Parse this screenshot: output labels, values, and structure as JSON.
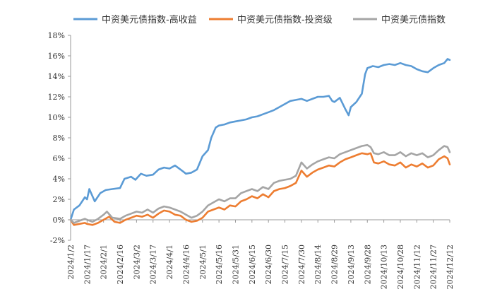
{
  "chart_data": {
    "type": "line",
    "title": "",
    "xlabel": "",
    "ylabel": "",
    "legend_position": "top",
    "grid": false,
    "ylim": [
      -2,
      18
    ],
    "yticks": [
      -2,
      0,
      2,
      4,
      6,
      8,
      10,
      12,
      14,
      16,
      18
    ],
    "ytick_labels": [
      "-2%",
      "0%",
      "2%",
      "4%",
      "6%",
      "8%",
      "10%",
      "12%",
      "14%",
      "16%",
      "18%"
    ],
    "x_tick_labels": [
      "2024/1/2",
      "2024/1/17",
      "2024/2/1",
      "2024/2/16",
      "2024/3/2",
      "2024/3/17",
      "2024/4/1",
      "2024/4/16",
      "2024/5/1",
      "2024/5/16",
      "2024/5/31",
      "2024/6/15",
      "2024/6/30",
      "2024/7/15",
      "2024/7/30",
      "2024/8/14",
      "2024/8/29",
      "2024/9/13",
      "2024/9/28",
      "2024/10/13",
      "2024/10/28",
      "2024/11/12",
      "2024/11/27",
      "2024/12/12"
    ],
    "series": [
      {
        "name": "中资美元债指数-高收益",
        "color": "#5B9BD5",
        "points": [
          [
            "2024/1/2",
            0.0
          ],
          [
            "2024/1/5",
            1.0
          ],
          [
            "2024/1/10",
            1.4
          ],
          [
            "2024/1/15",
            2.2
          ],
          [
            "2024/1/17",
            2.0
          ],
          [
            "2024/1/19",
            3.0
          ],
          [
            "2024/1/24",
            1.8
          ],
          [
            "2024/1/29",
            2.6
          ],
          [
            "2024/2/3",
            2.9
          ],
          [
            "2024/2/9",
            3.0
          ],
          [
            "2024/2/16",
            3.1
          ],
          [
            "2024/2/20",
            4.0
          ],
          [
            "2024/2/26",
            4.2
          ],
          [
            "2024/3/1",
            3.9
          ],
          [
            "2024/3/6",
            4.5
          ],
          [
            "2024/3/11",
            4.3
          ],
          [
            "2024/3/17",
            4.4
          ],
          [
            "2024/3/22",
            4.9
          ],
          [
            "2024/3/27",
            5.1
          ],
          [
            "2024/4/1",
            5.0
          ],
          [
            "2024/4/6",
            5.3
          ],
          [
            "2024/4/11",
            4.9
          ],
          [
            "2024/4/16",
            4.5
          ],
          [
            "2024/4/21",
            4.6
          ],
          [
            "2024/4/26",
            4.9
          ],
          [
            "2024/5/1",
            6.2
          ],
          [
            "2024/5/6",
            6.8
          ],
          [
            "2024/5/9",
            8.0
          ],
          [
            "2024/5/13",
            9.0
          ],
          [
            "2024/5/16",
            9.2
          ],
          [
            "2024/5/21",
            9.3
          ],
          [
            "2024/5/26",
            9.5
          ],
          [
            "2024/5/31",
            9.6
          ],
          [
            "2024/6/5",
            9.7
          ],
          [
            "2024/6/10",
            9.8
          ],
          [
            "2024/6/15",
            10.0
          ],
          [
            "2024/6/20",
            10.1
          ],
          [
            "2024/6/25",
            10.3
          ],
          [
            "2024/6/30",
            10.5
          ],
          [
            "2024/7/5",
            10.7
          ],
          [
            "2024/7/10",
            11.0
          ],
          [
            "2024/7/15",
            11.3
          ],
          [
            "2024/7/20",
            11.6
          ],
          [
            "2024/7/25",
            11.7
          ],
          [
            "2024/7/30",
            11.8
          ],
          [
            "2024/8/4",
            11.6
          ],
          [
            "2024/8/9",
            11.8
          ],
          [
            "2024/8/14",
            12.0
          ],
          [
            "2024/8/19",
            12.0
          ],
          [
            "2024/8/24",
            12.1
          ],
          [
            "2024/8/27",
            11.6
          ],
          [
            "2024/8/29",
            11.5
          ],
          [
            "2024/9/3",
            11.9
          ],
          [
            "2024/9/8",
            10.8
          ],
          [
            "2024/9/11",
            10.2
          ],
          [
            "2024/9/13",
            11.0
          ],
          [
            "2024/9/18",
            11.5
          ],
          [
            "2024/9/23",
            12.3
          ],
          [
            "2024/9/26",
            14.2
          ],
          [
            "2024/9/28",
            14.8
          ],
          [
            "2024/10/3",
            15.0
          ],
          [
            "2024/10/8",
            14.9
          ],
          [
            "2024/10/13",
            15.1
          ],
          [
            "2024/10/18",
            15.2
          ],
          [
            "2024/10/23",
            15.1
          ],
          [
            "2024/10/28",
            15.3
          ],
          [
            "2024/11/2",
            15.1
          ],
          [
            "2024/11/7",
            15.0
          ],
          [
            "2024/11/12",
            14.7
          ],
          [
            "2024/11/17",
            14.5
          ],
          [
            "2024/11/22",
            14.4
          ],
          [
            "2024/11/27",
            14.8
          ],
          [
            "2024/12/2",
            15.1
          ],
          [
            "2024/12/7",
            15.3
          ],
          [
            "2024/12/10",
            15.7
          ],
          [
            "2024/12/12",
            15.6
          ]
        ]
      },
      {
        "name": "中资美元债指数-投资级",
        "color": "#ED7D31",
        "points": [
          [
            "2024/1/2",
            0.0
          ],
          [
            "2024/1/5",
            -0.5
          ],
          [
            "2024/1/10",
            -0.4
          ],
          [
            "2024/1/15",
            -0.3
          ],
          [
            "2024/1/17",
            -0.4
          ],
          [
            "2024/1/22",
            -0.5
          ],
          [
            "2024/1/27",
            -0.3
          ],
          [
            "2024/2/1",
            0.0
          ],
          [
            "2024/2/6",
            0.3
          ],
          [
            "2024/2/11",
            -0.2
          ],
          [
            "2024/2/16",
            -0.3
          ],
          [
            "2024/2/21",
            0.0
          ],
          [
            "2024/2/26",
            0.2
          ],
          [
            "2024/3/2",
            0.4
          ],
          [
            "2024/3/7",
            0.3
          ],
          [
            "2024/3/12",
            0.5
          ],
          [
            "2024/3/17",
            0.2
          ],
          [
            "2024/3/22",
            0.6
          ],
          [
            "2024/3/27",
            0.9
          ],
          [
            "2024/4/1",
            0.8
          ],
          [
            "2024/4/6",
            0.5
          ],
          [
            "2024/4/11",
            0.4
          ],
          [
            "2024/4/16",
            0.0
          ],
          [
            "2024/4/21",
            -0.2
          ],
          [
            "2024/4/26",
            -0.1
          ],
          [
            "2024/5/1",
            0.2
          ],
          [
            "2024/5/6",
            0.8
          ],
          [
            "2024/5/11",
            1.0
          ],
          [
            "2024/5/16",
            1.2
          ],
          [
            "2024/5/21",
            1.0
          ],
          [
            "2024/5/26",
            1.4
          ],
          [
            "2024/5/31",
            1.3
          ],
          [
            "2024/6/5",
            1.8
          ],
          [
            "2024/6/10",
            2.0
          ],
          [
            "2024/6/15",
            2.3
          ],
          [
            "2024/6/20",
            2.1
          ],
          [
            "2024/6/25",
            2.5
          ],
          [
            "2024/6/30",
            2.2
          ],
          [
            "2024/7/5",
            2.8
          ],
          [
            "2024/7/10",
            3.0
          ],
          [
            "2024/7/15",
            3.1
          ],
          [
            "2024/7/20",
            3.3
          ],
          [
            "2024/7/25",
            3.6
          ],
          [
            "2024/7/30",
            4.8
          ],
          [
            "2024/8/4",
            4.2
          ],
          [
            "2024/8/9",
            4.6
          ],
          [
            "2024/8/14",
            4.9
          ],
          [
            "2024/8/19",
            5.1
          ],
          [
            "2024/8/24",
            5.3
          ],
          [
            "2024/8/29",
            5.2
          ],
          [
            "2024/9/3",
            5.6
          ],
          [
            "2024/9/8",
            5.9
          ],
          [
            "2024/9/13",
            6.1
          ],
          [
            "2024/9/18",
            6.3
          ],
          [
            "2024/9/23",
            6.5
          ],
          [
            "2024/9/28",
            6.4
          ],
          [
            "2024/10/1",
            6.5
          ],
          [
            "2024/10/4",
            5.6
          ],
          [
            "2024/10/8",
            5.5
          ],
          [
            "2024/10/13",
            5.7
          ],
          [
            "2024/10/18",
            5.4
          ],
          [
            "2024/10/23",
            5.3
          ],
          [
            "2024/10/28",
            5.6
          ],
          [
            "2024/11/2",
            5.1
          ],
          [
            "2024/11/7",
            5.4
          ],
          [
            "2024/11/12",
            5.2
          ],
          [
            "2024/11/17",
            5.5
          ],
          [
            "2024/11/22",
            5.1
          ],
          [
            "2024/11/27",
            5.3
          ],
          [
            "2024/12/2",
            5.9
          ],
          [
            "2024/12/7",
            6.2
          ],
          [
            "2024/12/10",
            6.0
          ],
          [
            "2024/12/12",
            5.4
          ]
        ]
      },
      {
        "name": "中资美元债指数",
        "color": "#A5A5A5",
        "points": [
          [
            "2024/1/2",
            0.0
          ],
          [
            "2024/1/5",
            -0.3
          ],
          [
            "2024/1/10",
            -0.1
          ],
          [
            "2024/1/15",
            0.1
          ],
          [
            "2024/1/17",
            0.0
          ],
          [
            "2024/1/22",
            -0.2
          ],
          [
            "2024/1/27",
            0.1
          ],
          [
            "2024/2/1",
            0.5
          ],
          [
            "2024/2/4",
            0.8
          ],
          [
            "2024/2/9",
            0.2
          ],
          [
            "2024/2/16",
            0.1
          ],
          [
            "2024/2/21",
            0.4
          ],
          [
            "2024/2/26",
            0.6
          ],
          [
            "2024/3/2",
            0.8
          ],
          [
            "2024/3/7",
            0.7
          ],
          [
            "2024/3/12",
            1.0
          ],
          [
            "2024/3/17",
            0.7
          ],
          [
            "2024/3/22",
            1.1
          ],
          [
            "2024/3/27",
            1.3
          ],
          [
            "2024/4/1",
            1.2
          ],
          [
            "2024/4/6",
            1.0
          ],
          [
            "2024/4/11",
            0.8
          ],
          [
            "2024/4/16",
            0.5
          ],
          [
            "2024/4/21",
            0.2
          ],
          [
            "2024/4/26",
            0.4
          ],
          [
            "2024/5/1",
            0.8
          ],
          [
            "2024/5/6",
            1.4
          ],
          [
            "2024/5/11",
            1.7
          ],
          [
            "2024/5/16",
            2.0
          ],
          [
            "2024/5/21",
            1.8
          ],
          [
            "2024/5/26",
            2.1
          ],
          [
            "2024/5/31",
            2.1
          ],
          [
            "2024/6/5",
            2.6
          ],
          [
            "2024/6/10",
            2.8
          ],
          [
            "2024/6/15",
            3.0
          ],
          [
            "2024/6/20",
            2.8
          ],
          [
            "2024/6/25",
            3.2
          ],
          [
            "2024/6/30",
            3.0
          ],
          [
            "2024/7/5",
            3.6
          ],
          [
            "2024/7/10",
            3.8
          ],
          [
            "2024/7/15",
            3.9
          ],
          [
            "2024/7/20",
            4.0
          ],
          [
            "2024/7/25",
            4.3
          ],
          [
            "2024/7/30",
            5.6
          ],
          [
            "2024/8/4",
            5.0
          ],
          [
            "2024/8/9",
            5.4
          ],
          [
            "2024/8/14",
            5.7
          ],
          [
            "2024/8/19",
            5.9
          ],
          [
            "2024/8/24",
            6.1
          ],
          [
            "2024/8/29",
            6.0
          ],
          [
            "2024/9/3",
            6.4
          ],
          [
            "2024/9/8",
            6.6
          ],
          [
            "2024/9/13",
            6.8
          ],
          [
            "2024/9/18",
            7.0
          ],
          [
            "2024/9/23",
            7.2
          ],
          [
            "2024/9/28",
            7.3
          ],
          [
            "2024/10/1",
            7.1
          ],
          [
            "2024/10/4",
            6.5
          ],
          [
            "2024/10/8",
            6.4
          ],
          [
            "2024/10/13",
            6.6
          ],
          [
            "2024/10/18",
            6.3
          ],
          [
            "2024/10/23",
            6.3
          ],
          [
            "2024/10/28",
            6.6
          ],
          [
            "2024/11/2",
            6.2
          ],
          [
            "2024/11/7",
            6.5
          ],
          [
            "2024/11/12",
            6.3
          ],
          [
            "2024/11/17",
            6.5
          ],
          [
            "2024/11/22",
            6.1
          ],
          [
            "2024/11/27",
            6.3
          ],
          [
            "2024/12/2",
            6.8
          ],
          [
            "2024/12/7",
            7.2
          ],
          [
            "2024/12/10",
            7.1
          ],
          [
            "2024/12/12",
            6.6
          ]
        ]
      }
    ]
  }
}
